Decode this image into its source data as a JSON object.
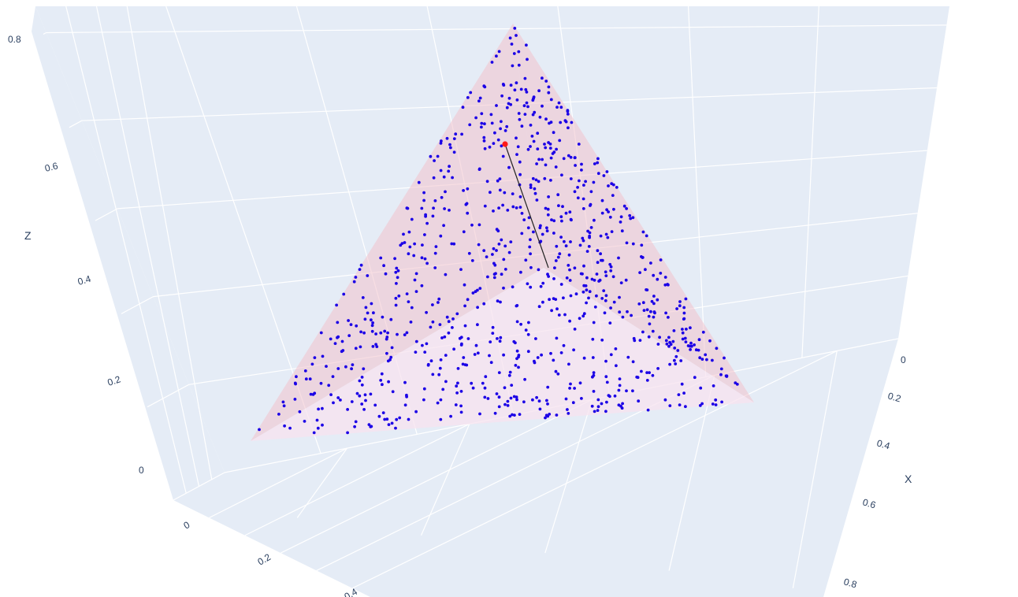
{
  "chart_data": {
    "type": "scatter3d",
    "title": "",
    "axes": {
      "x": {
        "label": "X",
        "ticks": [
          "0",
          "0.2",
          "0.4",
          "0.6",
          "0.8"
        ],
        "range": [
          0,
          0.9
        ]
      },
      "y": {
        "label": "",
        "ticks": [
          "0",
          "0.2",
          "0.4"
        ],
        "range": [
          0,
          0.9
        ]
      },
      "z": {
        "label": "Z",
        "ticks": [
          "0",
          "0.2",
          "0.4",
          "0.6",
          "0.8"
        ],
        "range": [
          0,
          0.85
        ]
      }
    },
    "surface": {
      "type": "simplex-plane",
      "vertices": [
        [
          1,
          0,
          0
        ],
        [
          0,
          1,
          0
        ],
        [
          0,
          0,
          1
        ]
      ],
      "color": "#f6c9d2"
    },
    "series": [
      {
        "kind": "points-on-plane",
        "color": "#1b00e6",
        "count": 900
      },
      {
        "kind": "highlight-point",
        "color": "#ff1a1a"
      },
      {
        "kind": "segment",
        "color": "#222222"
      }
    ],
    "grid": true,
    "background": "#e5ecf6"
  }
}
